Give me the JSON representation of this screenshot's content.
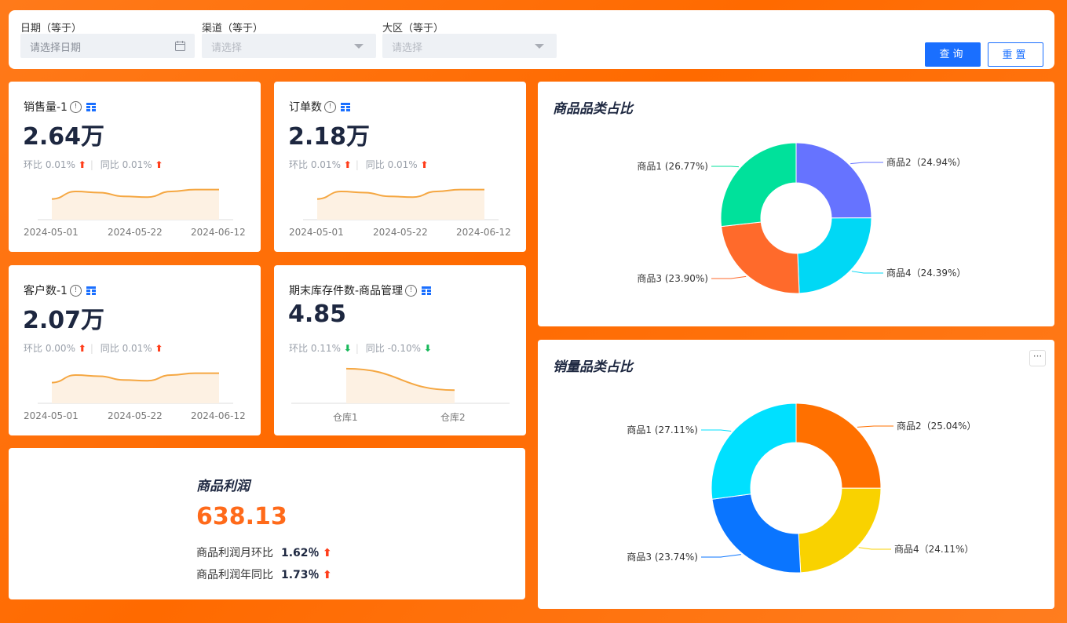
{
  "filters": [
    {
      "label": "日期（等于）",
      "placeholder": "请选择日期",
      "icon": "calendar-icon"
    },
    {
      "label": "渠道（等于）",
      "placeholder": "请选择",
      "icon": "chevron-down-icon"
    },
    {
      "label": "大区（等于）",
      "placeholder": "请选择",
      "icon": "chevron-down-icon"
    }
  ],
  "buttons": {
    "query": "查询",
    "reset": "重置"
  },
  "kpis": [
    {
      "title": "销售量-1",
      "value": "2.64万",
      "mom_label": "环比",
      "mom": "0.01%",
      "mom_dir": "up",
      "yoy_label": "同比",
      "yoy": "0.01%",
      "yoy_dir": "up",
      "x_labels": [
        "2024-05-01",
        "2024-05-22",
        "2024-06-12"
      ]
    },
    {
      "title": "订单数",
      "value": "2.18万",
      "mom_label": "环比",
      "mom": "0.01%",
      "mom_dir": "up",
      "yoy_label": "同比",
      "yoy": "0.01%",
      "yoy_dir": "up",
      "x_labels": [
        "2024-05-01",
        "2024-05-22",
        "2024-06-12"
      ]
    },
    {
      "title": "客户数-1",
      "value": "2.07万",
      "mom_label": "环比",
      "mom": "0.00%",
      "mom_dir": "up",
      "yoy_label": "同比",
      "yoy": "0.01%",
      "yoy_dir": "up",
      "x_labels": [
        "2024-05-01",
        "2024-05-22",
        "2024-06-12"
      ]
    },
    {
      "title": "期末库存件数-商品管理",
      "value": "4.85",
      "mom_label": "环比",
      "mom": "0.11%",
      "mom_dir": "down",
      "yoy_label": "同比",
      "yoy": "-0.10%",
      "yoy_dir": "down",
      "x_labels": [
        "仓库1",
        "仓库2"
      ]
    }
  ],
  "profit": {
    "title": "商品利润",
    "value": "638.13",
    "mom_label": "商品利润月环比",
    "mom": "1.62％",
    "yoy_label": "商品利润年同比",
    "yoy": "1.73％"
  },
  "colors": {
    "accent": "#ff6a00",
    "primary": "#1a6fff",
    "up": "#ff3d1a",
    "down": "#18b85a",
    "spark_line": "#f5a742"
  },
  "chart_data": [
    {
      "type": "pie",
      "title": "商品品类占比",
      "categories": [
        "商品1",
        "商品2",
        "商品3",
        "商品4"
      ],
      "values": [
        26.77,
        24.94,
        23.9,
        24.39
      ],
      "labels": [
        "商品1 (26.77%)",
        "商品2（24.94%）",
        "商品3 (23.90%)",
        "商品4（24.39%）"
      ],
      "order": [
        "商品2",
        "商品4",
        "商品3",
        "商品1"
      ],
      "colors": {
        "商品1": "#00e19b",
        "商品2": "#6673ff",
        "商品3": "#ff6a2b",
        "商品4": "#00d8f5"
      }
    },
    {
      "type": "pie",
      "title": "销量品类占比",
      "categories": [
        "商品1",
        "商品2",
        "商品3",
        "商品4"
      ],
      "values": [
        27.11,
        25.04,
        23.74,
        24.11
      ],
      "labels": [
        "商品1 (27.11%)",
        "商品2（25.04%）",
        "商品3 (23.74%)",
        "商品4（24.11%）"
      ],
      "order": [
        "商品2",
        "商品4",
        "商品3",
        "商品1"
      ],
      "colors": {
        "商品1": "#00e0ff",
        "商品2": "#ff7000",
        "商品3": "#0a75ff",
        "商品4": "#f9d200"
      }
    }
  ]
}
